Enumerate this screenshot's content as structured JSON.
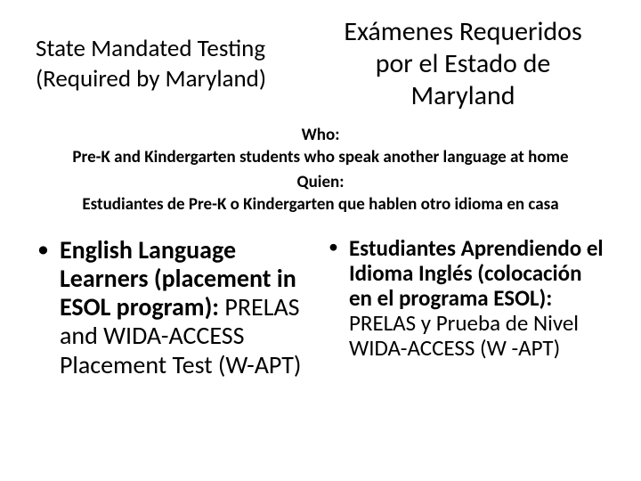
{
  "header": {
    "left_line1": "State Mandated Testing",
    "left_line2": "(Required by Maryland)",
    "right_line1": "Exámenes Requeridos",
    "right_line2": "por el Estado de",
    "right_line3": "Maryland"
  },
  "who": {
    "en_label": "Who:",
    "en_text": "Pre-K and Kindergarten students who speak another language at home",
    "es_label": "Quien:",
    "es_text": "Estudiantes de Pre-K o Kindergarten que hablen otro idioma en casa"
  },
  "bullets": {
    "en_bold": "English Language Learners (placement in ESOL program):",
    "en_rest": " PRELAS and WIDA-ACCESS Placement Test (W-APT)",
    "es_bold": "Estudiantes Aprendiendo el Idioma Inglés (colocación en el programa ESOL):",
    "es_rest": " PRELAS y Prueba de Nivel WIDA-ACCESS (W -APT)"
  },
  "colors": {
    "background": "#ffffff",
    "text": "#000000"
  }
}
